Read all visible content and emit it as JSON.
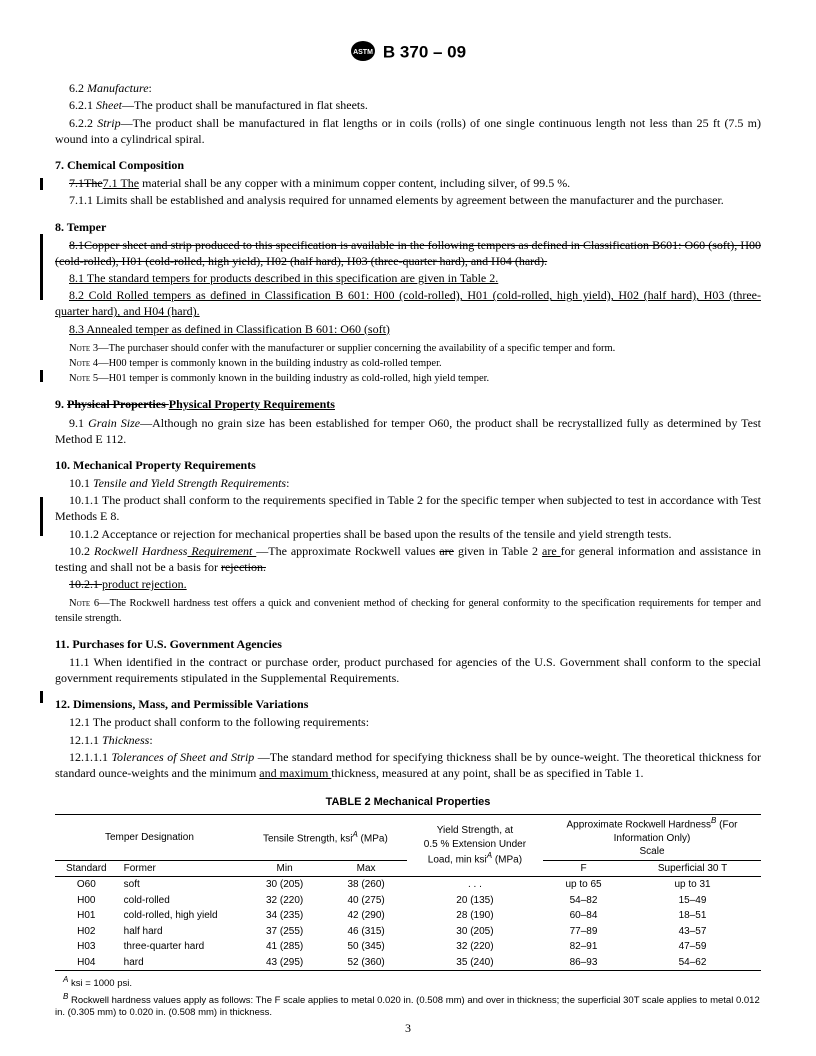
{
  "header": {
    "designation": "B 370 – 09"
  },
  "s6": {
    "l62": "6.2",
    "t62": "Manufacture",
    "l621": "6.2.1",
    "t621i": "Sheet",
    "t621": "—The product shall be manufactured in flat sheets.",
    "l622": "6.2.2",
    "t622i": "Strip",
    "t622": "—The product shall be manufactured in flat lengths or in coils (rolls) of one single continuous length not less than 25 ft (7.5 m) wound into a cylindrical spiral."
  },
  "s7": {
    "heading": "7.  Chemical Composition",
    "l71s": "7.1The",
    "l71u": "7.1  The",
    "t71": " material shall be any copper with a minimum copper content, including silver, of 99.5 %.",
    "l711": "7.1.1  Limits shall be established and analysis required for unnamed elements by agreement between the manufacturer and the purchaser."
  },
  "s8": {
    "heading": "8.  Temper",
    "old": "8.1Copper sheet and strip produced to this specification is available in the following tempers as defined in Classification B601: O60 (soft), H00 (cold-rolled), H01 (cold-rolled, high yield), H02 (half hard), H03 (three-quarter hard), and H04 (hard).",
    "n81": "8.1  The standard tempers for products described in this specification are given in Table 2.",
    "n82": "8.2  Cold Rolled tempers as defined in Classification B 601: H00 (cold-rolled), H01 (cold-rolled, high yield), H02 (half hard), H03 (three-quarter hard), and H04 (hard).",
    "n83": "8.3  Annealed temper as defined in Classification B 601: O60 (soft)",
    "note3": " 3—The purchaser should confer with the manufacturer or supplier concerning the availability of a specific temper and form.",
    "note4": " 4—H00 temper is commonly known in the building industry as cold-rolled temper.",
    "note5": " 5—H01 temper is commonly known in the building industry as cold-rolled, high yield temper."
  },
  "s9": {
    "num": "9.  ",
    "old": "Physical Properties ",
    "new": "Physical Property Requirements",
    "l91": "9.1",
    "t91i": "Grain Size",
    "t91": "—Although no grain size has been established for temper O60, the product shall be recrystallized fully as determined by Test Method E 112."
  },
  "s10": {
    "heading": "10.  Mechanical Property Requirements",
    "l101": "10.1",
    "t101i": "Tensile and Yield Strength Requirements",
    "l1011": "10.1.1  The product shall conform to the requirements specified in Table 2 for the specific temper when subjected to test in accordance with Test Methods E 8.",
    "l1012": "10.1.2  Acceptance or rejection for mechanical properties shall be based upon the results of the tensile and yield strength tests.",
    "l102": "10.2",
    "t102i": "Rockwell Hardness",
    "t102u": " Requirement ",
    "t102a": "—The approximate Rockwell values ",
    "t102s": "are",
    "t102b": " given in Table 2 ",
    "t102u2": "are ",
    "t102c": "for general information and assistance in testing and shall not be a basis for ",
    "t102s2": "rejection.",
    "l1021s": "10.2.1 ",
    "l1021": "product rejection.",
    "note6": " 6—The Rockwell hardness test offers a quick and convenient method of checking for general conformity to the specification requirements for temper and tensile strength."
  },
  "s11": {
    "heading": "11.  Purchases for U.S. Government Agencies",
    "t111": "11.1  When identified in the contract or purchase order, product purchased for agencies of the U.S. Government shall conform to the special government requirements stipulated in the Supplemental Requirements."
  },
  "s12": {
    "heading": "12.  Dimensions, Mass, and Permissible Variations",
    "t121": "12.1  The product shall conform to the following requirements:",
    "l1211": "12.1.1",
    "t1211i": "Thickness",
    "l12111": "12.1.1.1",
    "t12111i": "Tolerances of Sheet and Strip ",
    "t12111a": "—The standard method for specifying thickness shall be by ounce-weight. The theoretical thickness for standard ounce-weights and the minimum ",
    "t12111u": "and maximum ",
    "t12111b": "thickness, measured at any point, shall be as specified in Table 1."
  },
  "table2": {
    "title": "TABLE 2  Mechanical Properties",
    "h_temper": "Temper Designation",
    "h_tensile": "Tensile Strength, ksi",
    "h_tensile2": " (MPa)",
    "h_yield1": "Yield Strength, at",
    "h_yield2": "0.5 % Extension Under",
    "h_yield3": "Load, min ksi",
    "h_yield4": " (MPa)",
    "h_rock1": "Approximate Rockwell Hardness",
    "h_rock2": " (For",
    "h_rock3": "Information Only)",
    "h_rock4": "Scale",
    "h_std": "Standard",
    "h_former": "Former",
    "h_min": "Min",
    "h_max": "Max",
    "h_f": "F",
    "h_s30t": "Superficial 30 T",
    "rows": [
      {
        "std": "O60",
        "former": "soft",
        "min": "30 (205)",
        "max": "38 (260)",
        "yield": ". . .",
        "f": "up to 65",
        "s": "up to 31"
      },
      {
        "std": "H00",
        "former": "cold-rolled",
        "min": "32 (220)",
        "max": "40 (275)",
        "yield": "20 (135)",
        "f": "54–82",
        "s": "15–49"
      },
      {
        "std": "H01",
        "former": "cold-rolled, high yield",
        "min": "34 (235)",
        "max": "42 (290)",
        "yield": "28 (190)",
        "f": "60–84",
        "s": "18–51"
      },
      {
        "std": "H02",
        "former": "half hard",
        "min": "37 (255)",
        "max": "46 (315)",
        "yield": "30 (205)",
        "f": "77–89",
        "s": "43–57"
      },
      {
        "std": "H03",
        "former": "three-quarter hard",
        "min": "41 (285)",
        "max": "50 (345)",
        "yield": "32 (220)",
        "f": "82–91",
        "s": "47–59"
      },
      {
        "std": "H04",
        "former": "hard",
        "min": "43 (295)",
        "max": "52 (360)",
        "yield": "35 (240)",
        "f": "86–93",
        "s": "54–62"
      }
    ],
    "fnA": " ksi = 1000 psi.",
    "fnB": " Rockwell hardness values apply as follows: The F scale applies to metal 0.020 in. (0.508 mm) and over in thickness; the superficial 30T scale applies to metal 0.012 in. (0.305 mm) to 0.020 in. (0.508 mm) in thickness."
  },
  "noteword": "Note",
  "supA": "A",
  "supB": "B",
  "pagenum": "3"
}
